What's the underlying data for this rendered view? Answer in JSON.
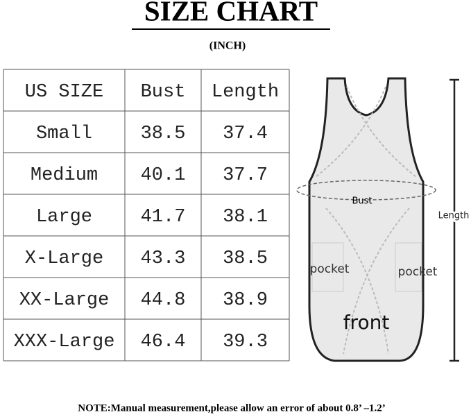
{
  "header": {
    "title": "SIZE CHART",
    "unit": "(INCH)"
  },
  "table": {
    "columns": [
      "US SIZE",
      "Bust",
      "Length"
    ],
    "rows": [
      [
        "Small",
        38.5,
        37.4
      ],
      [
        "Medium",
        40.1,
        37.7
      ],
      [
        "Large",
        41.7,
        38.1
      ],
      [
        "X-Large",
        43.3,
        38.5
      ],
      [
        "XX-Large",
        44.8,
        38.9
      ],
      [
        "XXX-Large",
        46.4,
        39.3
      ]
    ]
  },
  "diagram": {
    "bust_label": "Bust",
    "length_label": "Length",
    "pocket_left": "pocket",
    "pocket_right": "pocket",
    "view_label": "front"
  },
  "footer": {
    "note": "NOTE:Manual measurement,please allow an error of about 0.8’ –1.2’"
  }
}
